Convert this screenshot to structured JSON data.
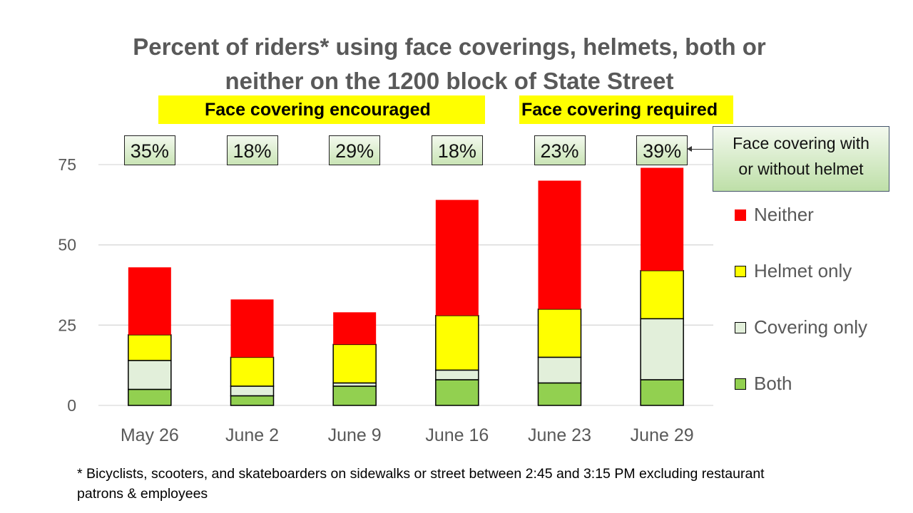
{
  "chart_data": {
    "type": "bar",
    "stacked": true,
    "title": "Percent of riders* using face coverings, helmets, both or neither on the 1200 block of State Street",
    "title_lines": [
      "Percent of riders* using face coverings, helmets, both or",
      "neither on the 1200 block of State Street"
    ],
    "xlabel": "",
    "ylabel": "",
    "categories": [
      "May 26",
      "June 2",
      "June 9",
      "June 16",
      "June 23",
      "June 29"
    ],
    "series": [
      {
        "name": "Both",
        "color": "#92d050",
        "values": [
          5,
          3,
          6,
          8,
          7,
          8
        ]
      },
      {
        "name": "Covering only",
        "color": "#e2efda",
        "values": [
          9,
          3,
          1,
          3,
          8,
          19
        ]
      },
      {
        "name": "Helmet only",
        "color": "#ffff00",
        "values": [
          8,
          9,
          12,
          17,
          15,
          15
        ]
      },
      {
        "name": "Neither",
        "color": "#ff0000",
        "values": [
          21,
          18,
          10,
          36,
          40,
          32
        ]
      }
    ],
    "ylim": [
      0,
      75
    ],
    "yticks": [
      0,
      25,
      50,
      75
    ],
    "grid": true,
    "legend_position": "right",
    "legend_order": [
      "Neither",
      "Helmet only",
      "Covering only",
      "Both"
    ],
    "annotations": {
      "percent_labels": [
        "35%",
        "18%",
        "29%",
        "18%",
        "23%",
        "39%"
      ],
      "phases": [
        {
          "label": "Face covering encouraged",
          "covers": [
            "May 26",
            "June 2",
            "June 9",
            "June 16"
          ]
        },
        {
          "label": "Face covering required",
          "covers": [
            "June 23",
            "June 29"
          ]
        }
      ],
      "callout": [
        "Face covering with",
        "or without helmet"
      ],
      "footnote": [
        "* Bicyclists, scooters, and skateboarders on sidewalks or street between 2:45 and 3:15 PM excluding restaurant",
        "patrons & employees"
      ]
    }
  }
}
